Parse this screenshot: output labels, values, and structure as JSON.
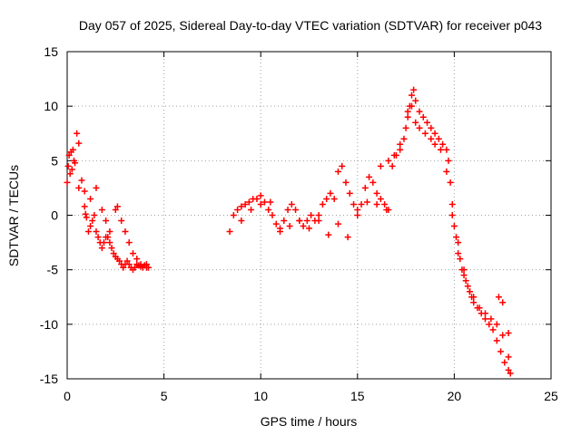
{
  "chart_data": {
    "type": "scatter",
    "title": "Day 057 of 2025, Sidereal Day-to-day VTEC variation (SDTVAR) for receiver p043",
    "xlabel": "GPS time / hours",
    "ylabel": "SDTVAR / TECUs",
    "xlim": [
      0,
      25
    ],
    "ylim": [
      -15,
      15
    ],
    "xticks": [
      0,
      5,
      10,
      15,
      20,
      25
    ],
    "yticks": [
      -15,
      -10,
      -5,
      0,
      5,
      10,
      15
    ],
    "xtick_labels": [
      "0",
      "5",
      "10",
      "15",
      "20",
      "25"
    ],
    "ytick_labels": [
      "-15",
      "-10",
      "-5",
      "0",
      "5",
      "10",
      "15"
    ],
    "grid": true,
    "marker": "+",
    "color": "#ff0000",
    "series": [
      {
        "name": "SDTVAR",
        "x": [
          0.0,
          0.05,
          0.1,
          0.15,
          0.2,
          0.25,
          0.3,
          0.35,
          0.4,
          0.5,
          0.6,
          0.75,
          0.9,
          1.0,
          1.1,
          1.2,
          1.3,
          1.4,
          1.5,
          1.6,
          1.7,
          1.8,
          1.9,
          2.0,
          2.1,
          2.2,
          2.3,
          2.4,
          2.5,
          2.6,
          2.7,
          2.8,
          2.9,
          3.0,
          3.1,
          3.2,
          3.3,
          3.4,
          3.5,
          3.6,
          3.7,
          3.8,
          3.9,
          4.0,
          4.1,
          4.2,
          0.6,
          0.95,
          0.9,
          1.2,
          1.5,
          1.8,
          2.0,
          2.2,
          2.5,
          2.6,
          2.8,
          3.0,
          3.2,
          3.4,
          3.6,
          3.8,
          4.0,
          4.1,
          8.4,
          8.6,
          8.8,
          9.0,
          9.2,
          9.4,
          9.6,
          9.8,
          10.0,
          10.2,
          10.4,
          10.6,
          10.8,
          11.0,
          11.2,
          11.4,
          11.6,
          11.8,
          12.0,
          12.2,
          12.4,
          12.6,
          12.8,
          13.0,
          13.2,
          13.4,
          13.6,
          13.8,
          14.0,
          14.2,
          14.4,
          14.6,
          14.8,
          15.0,
          15.2,
          15.4,
          15.6,
          15.8,
          16.0,
          16.2,
          16.4,
          16.6,
          9.0,
          9.5,
          10.0,
          10.5,
          11.0,
          11.5,
          12.0,
          12.5,
          13.0,
          13.5,
          14.0,
          14.5,
          15.0,
          15.5,
          16.0,
          16.5,
          16.8,
          17.0,
          17.2,
          17.4,
          17.5,
          17.6,
          17.7,
          17.8,
          17.9,
          18.0,
          18.2,
          18.4,
          18.6,
          18.8,
          19.0,
          19.2,
          19.4,
          19.6,
          19.7,
          19.8,
          19.9,
          20.0,
          20.1,
          20.2,
          20.3,
          20.4,
          20.5,
          20.6,
          20.7,
          20.8,
          20.9,
          21.0,
          21.2,
          21.4,
          21.6,
          21.8,
          22.0,
          22.2,
          22.4,
          22.6,
          22.8,
          22.9,
          17.6,
          17.8,
          18.0,
          18.2,
          18.5,
          18.8,
          19.0,
          19.3,
          19.6,
          19.9,
          20.2,
          20.5,
          20.8,
          21.0,
          21.3,
          21.6,
          21.9,
          22.2,
          22.5,
          22.8,
          16.2,
          16.6,
          16.9,
          17.2,
          22.3,
          22.5,
          22.8
        ],
        "y": [
          3.0,
          4.5,
          5.5,
          3.8,
          5.8,
          4.2,
          6.0,
          5.0,
          4.8,
          7.5,
          6.6,
          3.2,
          0.8,
          -0.2,
          -1.5,
          -1.0,
          -0.5,
          0.0,
          -1.5,
          -2.0,
          -2.5,
          -3.0,
          -2.5,
          -2.0,
          -2.0,
          -2.5,
          -3.0,
          -3.5,
          -3.8,
          -4.0,
          -4.2,
          -4.5,
          -4.8,
          -4.5,
          -4.2,
          -4.5,
          -4.8,
          -5.0,
          -4.8,
          -4.5,
          -4.6,
          -4.7,
          -4.8,
          -4.6,
          -4.5,
          -4.8,
          2.5,
          0.1,
          2.2,
          1.5,
          2.5,
          0.5,
          -0.5,
          -1.5,
          0.5,
          0.8,
          -0.5,
          -1.5,
          -2.5,
          -3.5,
          -4.0,
          -4.5,
          -4.6,
          -4.8,
          -1.5,
          0.0,
          0.5,
          0.8,
          1.0,
          1.2,
          1.5,
          1.5,
          1.8,
          1.2,
          0.5,
          0.0,
          -0.8,
          -1.2,
          -0.5,
          0.5,
          1.0,
          0.5,
          -0.5,
          -1.0,
          -0.5,
          0.0,
          -0.5,
          0.0,
          1.0,
          1.5,
          2.0,
          1.5,
          4.0,
          4.5,
          3.0,
          2.0,
          1.0,
          0.0,
          1.0,
          2.5,
          3.5,
          3.0,
          2.0,
          1.5,
          1.0,
          0.5,
          -0.5,
          0.5,
          1.0,
          1.2,
          -1.5,
          -1.0,
          -0.5,
          -1.2,
          -0.5,
          -1.8,
          -0.8,
          -2.0,
          0.5,
          1.2,
          1.0,
          0.5,
          4.5,
          5.5,
          6.0,
          7.0,
          8.0,
          9.0,
          10.0,
          11.0,
          11.5,
          10.5,
          9.5,
          9.0,
          8.5,
          8.0,
          7.5,
          7.0,
          6.5,
          6.0,
          5.0,
          3.0,
          1.0,
          -1.0,
          -2.0,
          -3.5,
          -4.0,
          -5.0,
          -5.5,
          -6.0,
          -6.5,
          -7.0,
          -7.5,
          -8.0,
          -8.5,
          -9.0,
          -9.5,
          -10.0,
          -10.5,
          -11.5,
          -12.5,
          -13.5,
          -14.2,
          -14.5,
          9.5,
          10.0,
          8.5,
          8.0,
          7.5,
          7.0,
          6.5,
          6.0,
          4.0,
          0.0,
          -2.5,
          -5.0,
          -7.0,
          -7.5,
          -8.5,
          -9.0,
          -9.5,
          -10.0,
          -11.0,
          -13.0,
          4.5,
          5.0,
          5.5,
          6.5,
          -7.5,
          -8.0,
          -10.8
        ]
      }
    ]
  }
}
